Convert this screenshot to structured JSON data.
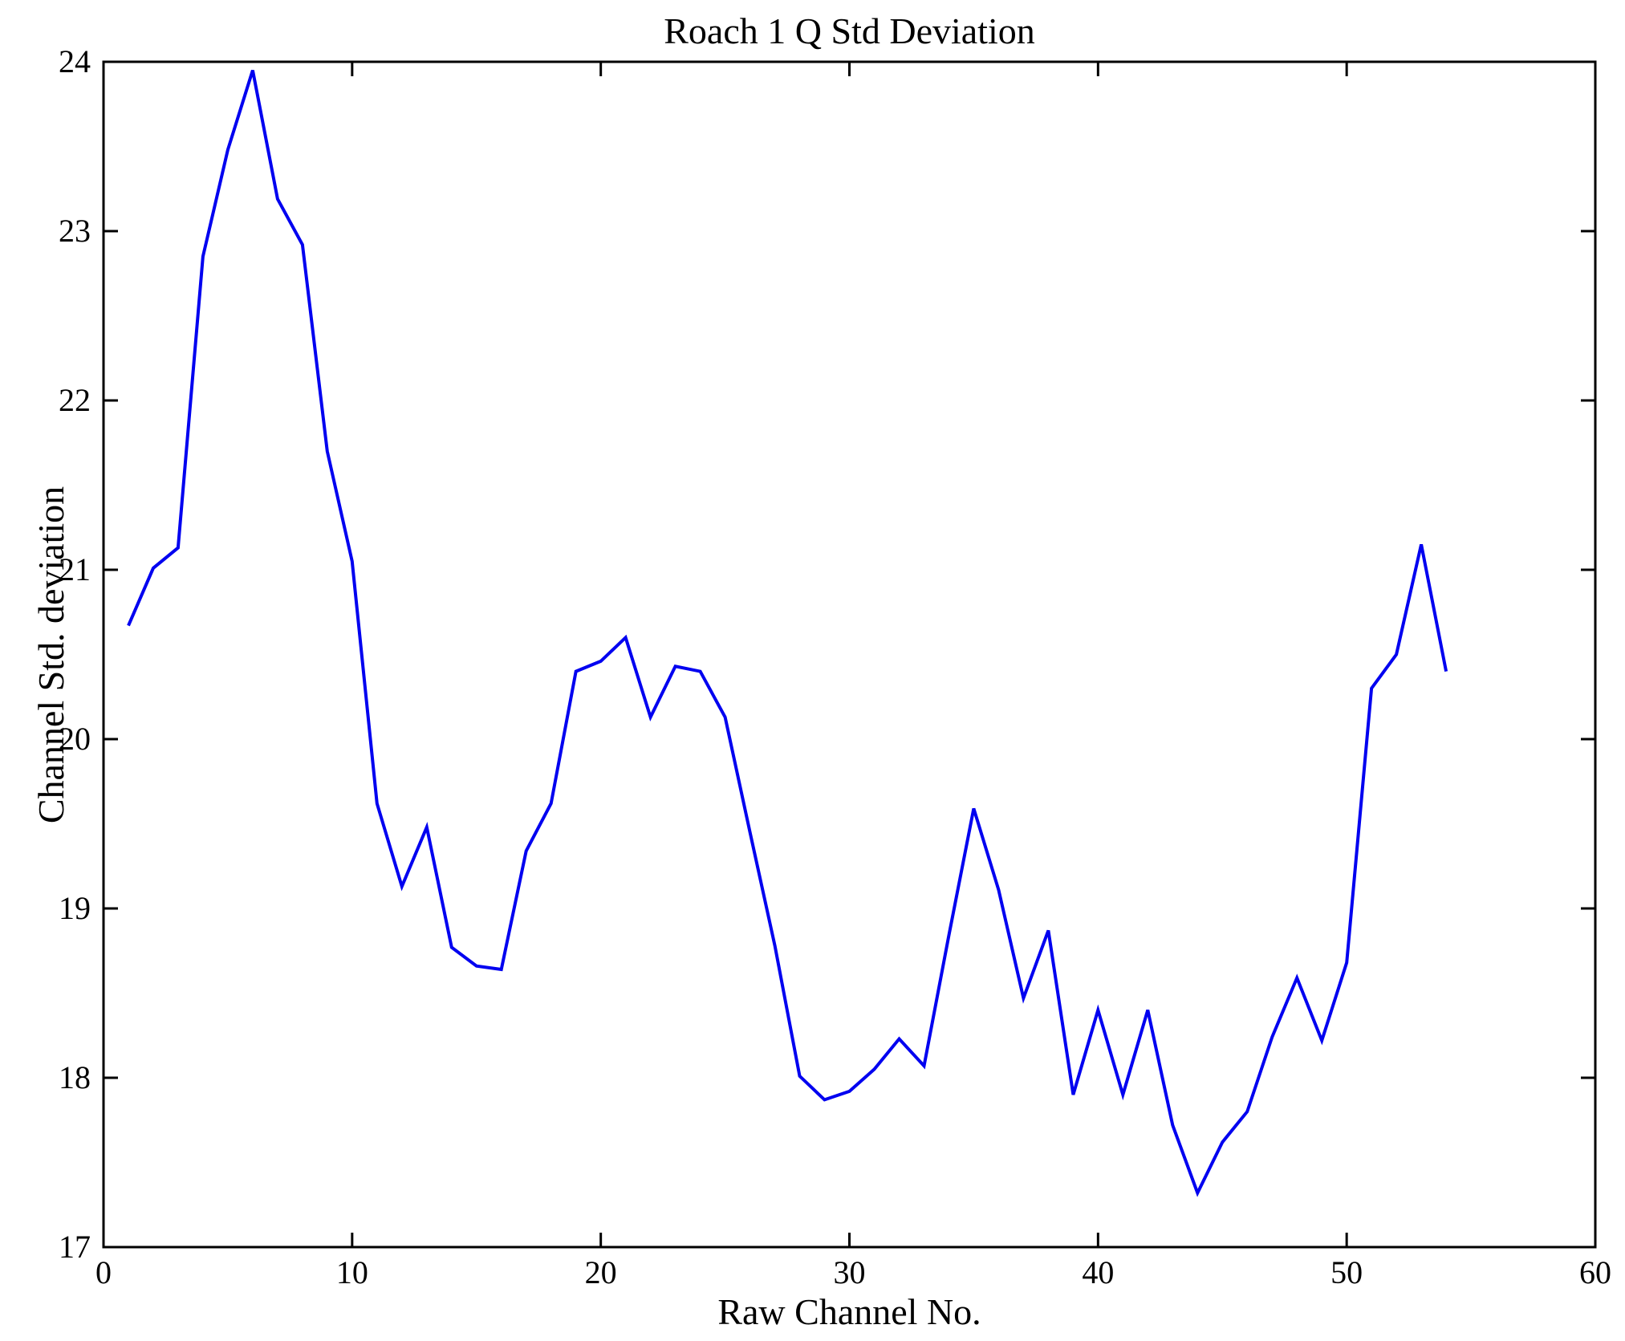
{
  "chart_data": {
    "type": "line",
    "title": "Roach 1 Q Std Deviation",
    "xlabel": "Raw Channel No.",
    "ylabel": "Channel Std. deviation",
    "xlim": [
      0,
      60
    ],
    "ylim": [
      17,
      24
    ],
    "x_ticks": [
      0,
      10,
      20,
      30,
      40,
      50,
      60
    ],
    "y_ticks": [
      17,
      18,
      19,
      20,
      21,
      22,
      23,
      24
    ],
    "grid": false,
    "legend": "none",
    "line_color": "#0000f0",
    "axis_color": "#000000",
    "background_color": "#ffffff",
    "series": [
      {
        "name": "Channel Std. deviation",
        "x": [
          1,
          2,
          3,
          4,
          5,
          6,
          7,
          8,
          9,
          10,
          11,
          12,
          13,
          14,
          15,
          16,
          17,
          18,
          19,
          20,
          21,
          22,
          23,
          24,
          25,
          26,
          27,
          28,
          29,
          30,
          31,
          32,
          33,
          34,
          35,
          36,
          37,
          38,
          39,
          40,
          41,
          42,
          43,
          44,
          45,
          46,
          47,
          48,
          49,
          50,
          51,
          52,
          53,
          54
        ],
        "values": [
          20.67,
          21.01,
          21.13,
          22.85,
          23.48,
          23.95,
          23.19,
          22.92,
          21.7,
          21.05,
          19.62,
          19.13,
          19.48,
          18.77,
          18.66,
          18.64,
          19.34,
          19.62,
          20.4,
          20.46,
          20.6,
          20.13,
          20.43,
          20.4,
          20.13,
          19.45,
          18.78,
          18.01,
          17.87,
          17.92,
          18.05,
          18.23,
          18.07,
          18.84,
          19.59,
          19.11,
          18.47,
          18.87,
          17.9,
          18.4,
          17.9,
          18.4,
          17.72,
          17.32,
          17.62,
          17.8,
          18.24,
          18.59,
          18.22,
          18.68,
          20.3,
          20.5,
          21.15,
          20.4
        ]
      }
    ]
  }
}
